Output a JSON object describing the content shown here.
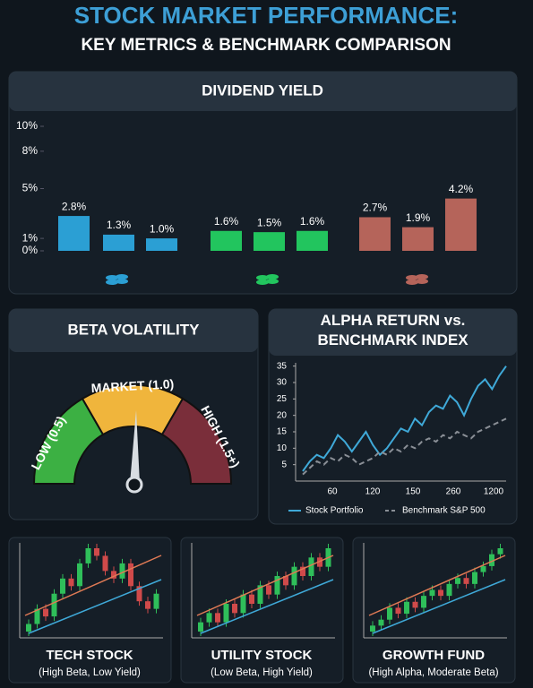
{
  "header": {
    "title": "STOCK MARKET PERFORMANCE:",
    "subtitle": "KEY METRICS & BENCHMARK COMPARISON"
  },
  "chart_data": [
    {
      "type": "bar",
      "title": "DIVIDEND YIELD",
      "categories": [
        null,
        null,
        null,
        null,
        null,
        null,
        null,
        null,
        null
      ],
      "values": [
        2.8,
        1.3,
        1.0,
        1.6,
        1.5,
        1.6,
        2.7,
        1.9,
        4.2
      ],
      "value_labels": [
        "2.8%",
        "1.3%",
        "1.0%",
        "1.6%",
        "1.5%",
        "1.6%",
        "2.7%",
        "1.9%",
        "4.2%"
      ],
      "colors": [
        "#2b9fd4",
        "#2b9fd4",
        "#2b9fd4",
        "#22c55e",
        "#22c55e",
        "#22c55e",
        "#b5645a",
        "#b5645a",
        "#b5645a"
      ],
      "ylim": [
        0,
        10
      ],
      "yticks": [
        {
          "value": 10,
          "label": "10%"
        },
        {
          "value": 8,
          "label": "8%"
        },
        {
          "value": 5,
          "label": "5%"
        },
        {
          "value": 1,
          "label": "1%"
        },
        {
          "value": 0,
          "label": "0%"
        }
      ]
    },
    {
      "type": "line",
      "title": "ALPHA RETURN vs. BENCHMARK INDEX",
      "xtick_labels": [
        "60",
        "120",
        "150",
        "260",
        "1200"
      ],
      "ylim": [
        0,
        36
      ],
      "yticks": [
        5,
        10,
        15,
        20,
        25,
        30,
        35
      ],
      "series": [
        {
          "name": "Stock Portfolio",
          "color": "#3fa9d8",
          "dash": false,
          "values": [
            3,
            6,
            8,
            7,
            10,
            14,
            12,
            9,
            12,
            15,
            11,
            8,
            10,
            13,
            16,
            15,
            19,
            17,
            21,
            23,
            22,
            26,
            24,
            20,
            25,
            29,
            31,
            28,
            32,
            35
          ]
        },
        {
          "name": "Benchmark S&P 500",
          "color": "#8a8f96",
          "dash": true,
          "values": [
            2,
            4,
            6,
            5,
            7,
            6,
            8,
            7,
            5,
            6,
            7,
            9,
            8,
            10,
            9,
            11,
            10,
            12,
            13,
            12,
            14,
            13,
            15,
            14,
            13,
            15,
            16,
            17,
            18,
            19
          ]
        }
      ]
    }
  ],
  "gauge": {
    "title": "BETA VOLATILITY",
    "low": "LOW (0.5)",
    "market": "MARKET (1.0)",
    "high": "HIGH (1.5+)"
  },
  "cards": [
    {
      "type": "candlestick",
      "title": "TECH STOCK",
      "subtitle": "(High Beta, Low Yield)",
      "values": [
        10,
        12,
        11,
        14,
        16,
        15,
        18,
        20,
        19,
        17,
        16,
        18,
        15,
        13,
        12,
        14
      ]
    },
    {
      "type": "candlestick",
      "title": "UTILITY STOCK",
      "subtitle": "(Low Beta, High Yield)",
      "values": [
        10,
        11,
        10,
        12,
        11,
        13,
        12,
        14,
        13,
        15,
        14,
        16,
        15,
        17,
        16,
        18
      ]
    },
    {
      "type": "candlestick",
      "title": "GROWTH FUND",
      "subtitle": "(High Alpha, Moderate Beta)",
      "values": [
        9,
        10,
        12,
        11,
        13,
        12,
        14,
        15,
        14,
        16,
        17,
        16,
        18,
        19,
        21,
        22
      ]
    }
  ]
}
